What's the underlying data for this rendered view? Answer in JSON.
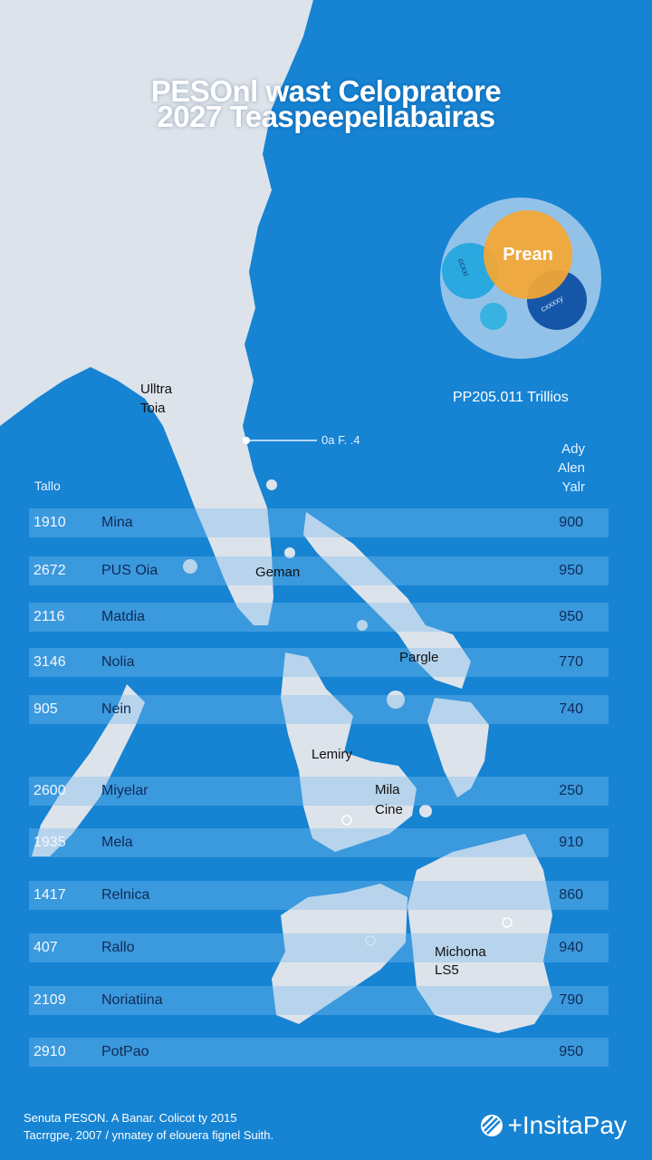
{
  "title": {
    "line1": "PESOnl wast Celopratore",
    "line2": "2027 Teaspeepellabairas"
  },
  "venn": {
    "main": "Prean",
    "left": "ccxxi",
    "right": "cxxxxy",
    "colors": {
      "main": "#f5a733",
      "left": "#2aa8e0",
      "right": "#1556a8",
      "small": "#38b2e0"
    }
  },
  "total": "PP205.011 Trillios",
  "callout": "0a F. .4",
  "column_header_left": "Tallo",
  "column_header_right": [
    "Ady",
    "Alen",
    "Yalr"
  ],
  "rows": [
    {
      "year": "1910",
      "name": "Mina",
      "value": "900"
    },
    {
      "year": "2672",
      "name": "PUS Oia",
      "value": "950"
    },
    {
      "year": "2116",
      "name": "Matdia",
      "value": "950"
    },
    {
      "year": "3146",
      "name": "Nolia",
      "value": "770"
    },
    {
      "year": "905",
      "name": "Nein",
      "value": "740"
    },
    {
      "year": "2600",
      "name": "Miyelar",
      "value": "250"
    },
    {
      "year": "1935",
      "name": "Mela",
      "value": "910"
    },
    {
      "year": "1417",
      "name": "Relnica",
      "value": "860"
    },
    {
      "year": "407",
      "name": "Rallo",
      "value": "940"
    },
    {
      "year": "2109",
      "name": "Noriatiina",
      "value": "790"
    },
    {
      "year": "2910",
      "name": "PotPao",
      "value": "950"
    }
  ],
  "map_labels": {
    "ultra": "Ulltra",
    "toia": "Toia",
    "geman": "Geman",
    "pargle": "Pargle",
    "lemiry": "Lemiry",
    "mila": "Mila",
    "cine": "Cine",
    "michona": "Michona",
    "ls5": "LS5"
  },
  "footer": {
    "line1": "Senuta PESON. A Banar. Colicot ty 2015",
    "line2": "Tacrrgpe, 2007 / ynnatey of elouera fignel Suith."
  },
  "logo": {
    "text": "+InsitaPay",
    "icon": "globe-icon"
  },
  "colors": {
    "ocean": "#1683d3",
    "land": "#dde3ea"
  }
}
